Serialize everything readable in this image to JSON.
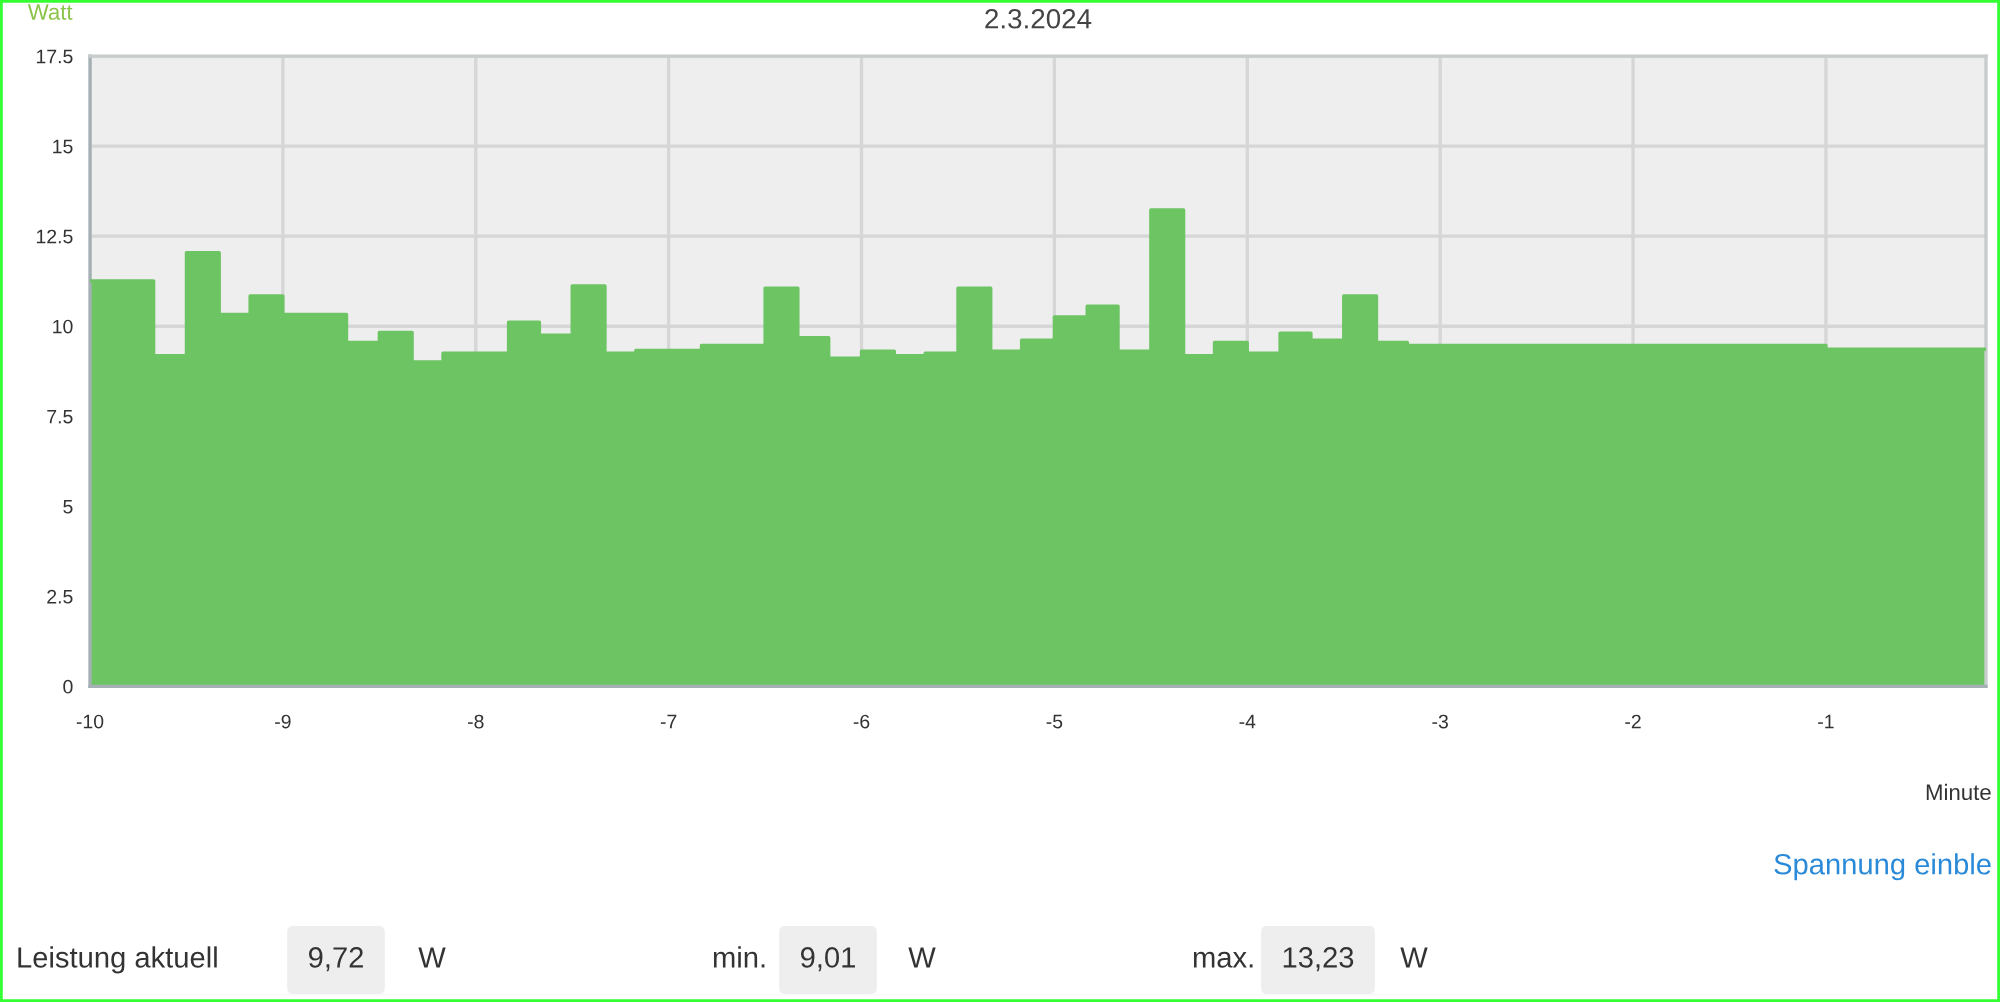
{
  "chart_data": {
    "type": "area",
    "title": "2.3.2024",
    "ylabel": "Watt",
    "xlabel": "Minute",
    "x": [
      -10,
      -9.67,
      -9.67,
      -9.5,
      -9.5,
      -9.33,
      -9.33,
      -9.17,
      -9.17,
      -9,
      -9,
      -8.67,
      -8.67,
      -8.5,
      -8.5,
      -8.33,
      -8.33,
      -8.17,
      -8.17,
      -7.83,
      -7.83,
      -7.67,
      -7.67,
      -7.5,
      -7.5,
      -7.33,
      -7.33,
      -7.17,
      -7.17,
      -6.83,
      -6.83,
      -6.5,
      -6.5,
      -6.33,
      -6.33,
      -6.17,
      -6.17,
      -6,
      -6,
      -5.83,
      -5.83,
      -5.67,
      -5.67,
      -5.5,
      -5.5,
      -5.33,
      -5.33,
      -5.17,
      -5.17,
      -5,
      -5,
      -4.83,
      -4.83,
      -4.67,
      -4.67,
      -4.5,
      -4.5,
      -4.33,
      -4.33,
      -4.17,
      -4.17,
      -4,
      -4,
      -3.83,
      -3.83,
      -3.67,
      -3.67,
      -3.5,
      -3.5,
      -3.33,
      -3.33,
      -3.17,
      -3.17,
      -1,
      -1,
      -0.17
    ],
    "values": [
      11.26,
      11.26,
      9.18,
      9.18,
      12.04,
      12.04,
      10.33,
      10.33,
      10.84,
      10.84,
      10.33,
      10.33,
      9.55,
      9.55,
      9.83,
      9.83,
      9.01,
      9.01,
      9.25,
      9.25,
      10.11,
      10.11,
      9.75,
      9.75,
      11.12,
      11.12,
      9.25,
      9.25,
      9.33,
      9.33,
      9.47,
      9.47,
      11.06,
      11.06,
      9.68,
      9.68,
      9.11,
      9.11,
      9.31,
      9.31,
      9.18,
      9.18,
      9.25,
      9.25,
      11.06,
      11.06,
      9.31,
      9.31,
      9.61,
      9.61,
      10.26,
      10.26,
      10.56,
      10.56,
      9.31,
      9.31,
      13.23,
      13.23,
      9.18,
      9.18,
      9.55,
      9.55,
      9.25,
      9.25,
      9.81,
      9.81,
      9.61,
      9.61,
      10.84,
      10.84,
      9.55,
      9.55,
      9.47,
      9.47,
      9.36,
      9.36
    ],
    "color": "#6cc463",
    "xlim": [
      -10,
      -0.17
    ],
    "ylim": [
      0,
      17.5
    ],
    "xticks": [
      -10,
      -9,
      -8,
      -7,
      -6,
      -5,
      -4,
      -3,
      -2,
      -1
    ],
    "yticks": [
      0,
      2.5,
      5,
      7.5,
      10,
      12.5,
      15,
      17.5
    ],
    "grid": true,
    "annotations": [
      "Spannung einble",
      "Leistung aktuell",
      "9,72",
      "W",
      "min.",
      "9,01",
      "W",
      "max.",
      "13,23",
      "W"
    ]
  }
}
